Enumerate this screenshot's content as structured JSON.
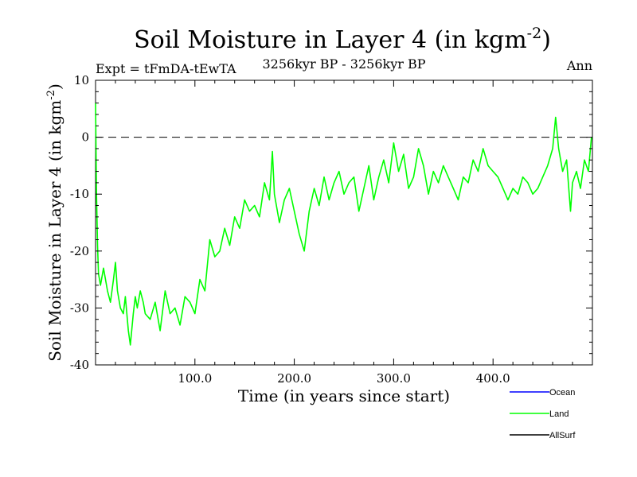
{
  "chart_data": {
    "type": "line",
    "title": "Soil Moisture in Layer 4 (in kgm",
    "title_sup": "-2",
    "title_close": ")",
    "left_label": "Expt = tFmDA-tEwTA",
    "center_label": "3256kyr BP - 3256kyr BP",
    "right_label": "Ann",
    "xlabel": "Time (in years since start)",
    "ylabel": "Soil Moisture in Layer 4 (in kgm",
    "ylabel_sup": "-2",
    "ylabel_close": ")",
    "xlim": [
      0,
      500
    ],
    "ylim": [
      -40,
      10
    ],
    "x_ticks": [
      100,
      200,
      300,
      400
    ],
    "x_tick_labels": [
      "100.0",
      "200.0",
      "300.0",
      "400.0"
    ],
    "y_ticks": [
      10,
      0,
      -10,
      -20,
      -30,
      -40
    ],
    "y_tick_labels": [
      "10",
      "0",
      "-10",
      "-20",
      "-30",
      "-40"
    ],
    "reference_line": 0,
    "legend": [
      {
        "name": "Ocean",
        "color": "#0000ff"
      },
      {
        "name": "Land",
        "color": "#00ff00"
      },
      {
        "name": "AllSurf",
        "color": "#000000"
      }
    ],
    "series": [
      {
        "name": "Land",
        "color": "#00ff00",
        "x": [
          0,
          1,
          2,
          3,
          5,
          8,
          12,
          15,
          18,
          20,
          22,
          25,
          28,
          30,
          33,
          35,
          38,
          40,
          42,
          45,
          48,
          50,
          55,
          60,
          65,
          70,
          75,
          80,
          85,
          90,
          95,
          100,
          105,
          110,
          115,
          120,
          125,
          130,
          135,
          140,
          145,
          150,
          155,
          160,
          165,
          170,
          175,
          178,
          180,
          185,
          190,
          195,
          200,
          205,
          210,
          215,
          220,
          225,
          230,
          235,
          240,
          245,
          250,
          255,
          260,
          265,
          270,
          275,
          280,
          285,
          290,
          295,
          300,
          305,
          310,
          315,
          320,
          325,
          330,
          335,
          340,
          345,
          350,
          355,
          360,
          365,
          370,
          375,
          380,
          385,
          390,
          395,
          400,
          405,
          410,
          415,
          420,
          425,
          430,
          435,
          440,
          445,
          450,
          455,
          460,
          463,
          466,
          470,
          474,
          478,
          480,
          484,
          488,
          492,
          496,
          499
        ],
        "values": [
          6,
          -10,
          -19,
          -24,
          -26,
          -23,
          -27,
          -29,
          -25,
          -22,
          -27,
          -30,
          -31,
          -28,
          -34,
          -36.5,
          -31,
          -28,
          -30,
          -27,
          -29,
          -31,
          -32,
          -29,
          -34,
          -27,
          -31,
          -30,
          -33,
          -28,
          -29,
          -31,
          -25,
          -27,
          -18,
          -21,
          -20,
          -16,
          -19,
          -14,
          -16,
          -11,
          -13,
          -12,
          -14,
          -8,
          -11,
          -2.5,
          -10,
          -15,
          -11,
          -9,
          -13,
          -17,
          -20,
          -13,
          -9,
          -12,
          -7,
          -11,
          -8,
          -6,
          -10,
          -8,
          -7,
          -13,
          -9,
          -5,
          -11,
          -7,
          -4,
          -8,
          -1,
          -6,
          -3,
          -9,
          -7,
          -2,
          -5,
          -10,
          -6,
          -8,
          -5,
          -7,
          -9,
          -11,
          -7,
          -8,
          -4,
          -6,
          -2,
          -5,
          -6,
          -7,
          -9,
          -11,
          -9,
          -10,
          -7,
          -8,
          -10,
          -9,
          -7,
          -5,
          -2,
          3.5,
          -2,
          -6,
          -4,
          -13,
          -8,
          -6,
          -9,
          -4,
          -6,
          0
        ]
      }
    ]
  }
}
